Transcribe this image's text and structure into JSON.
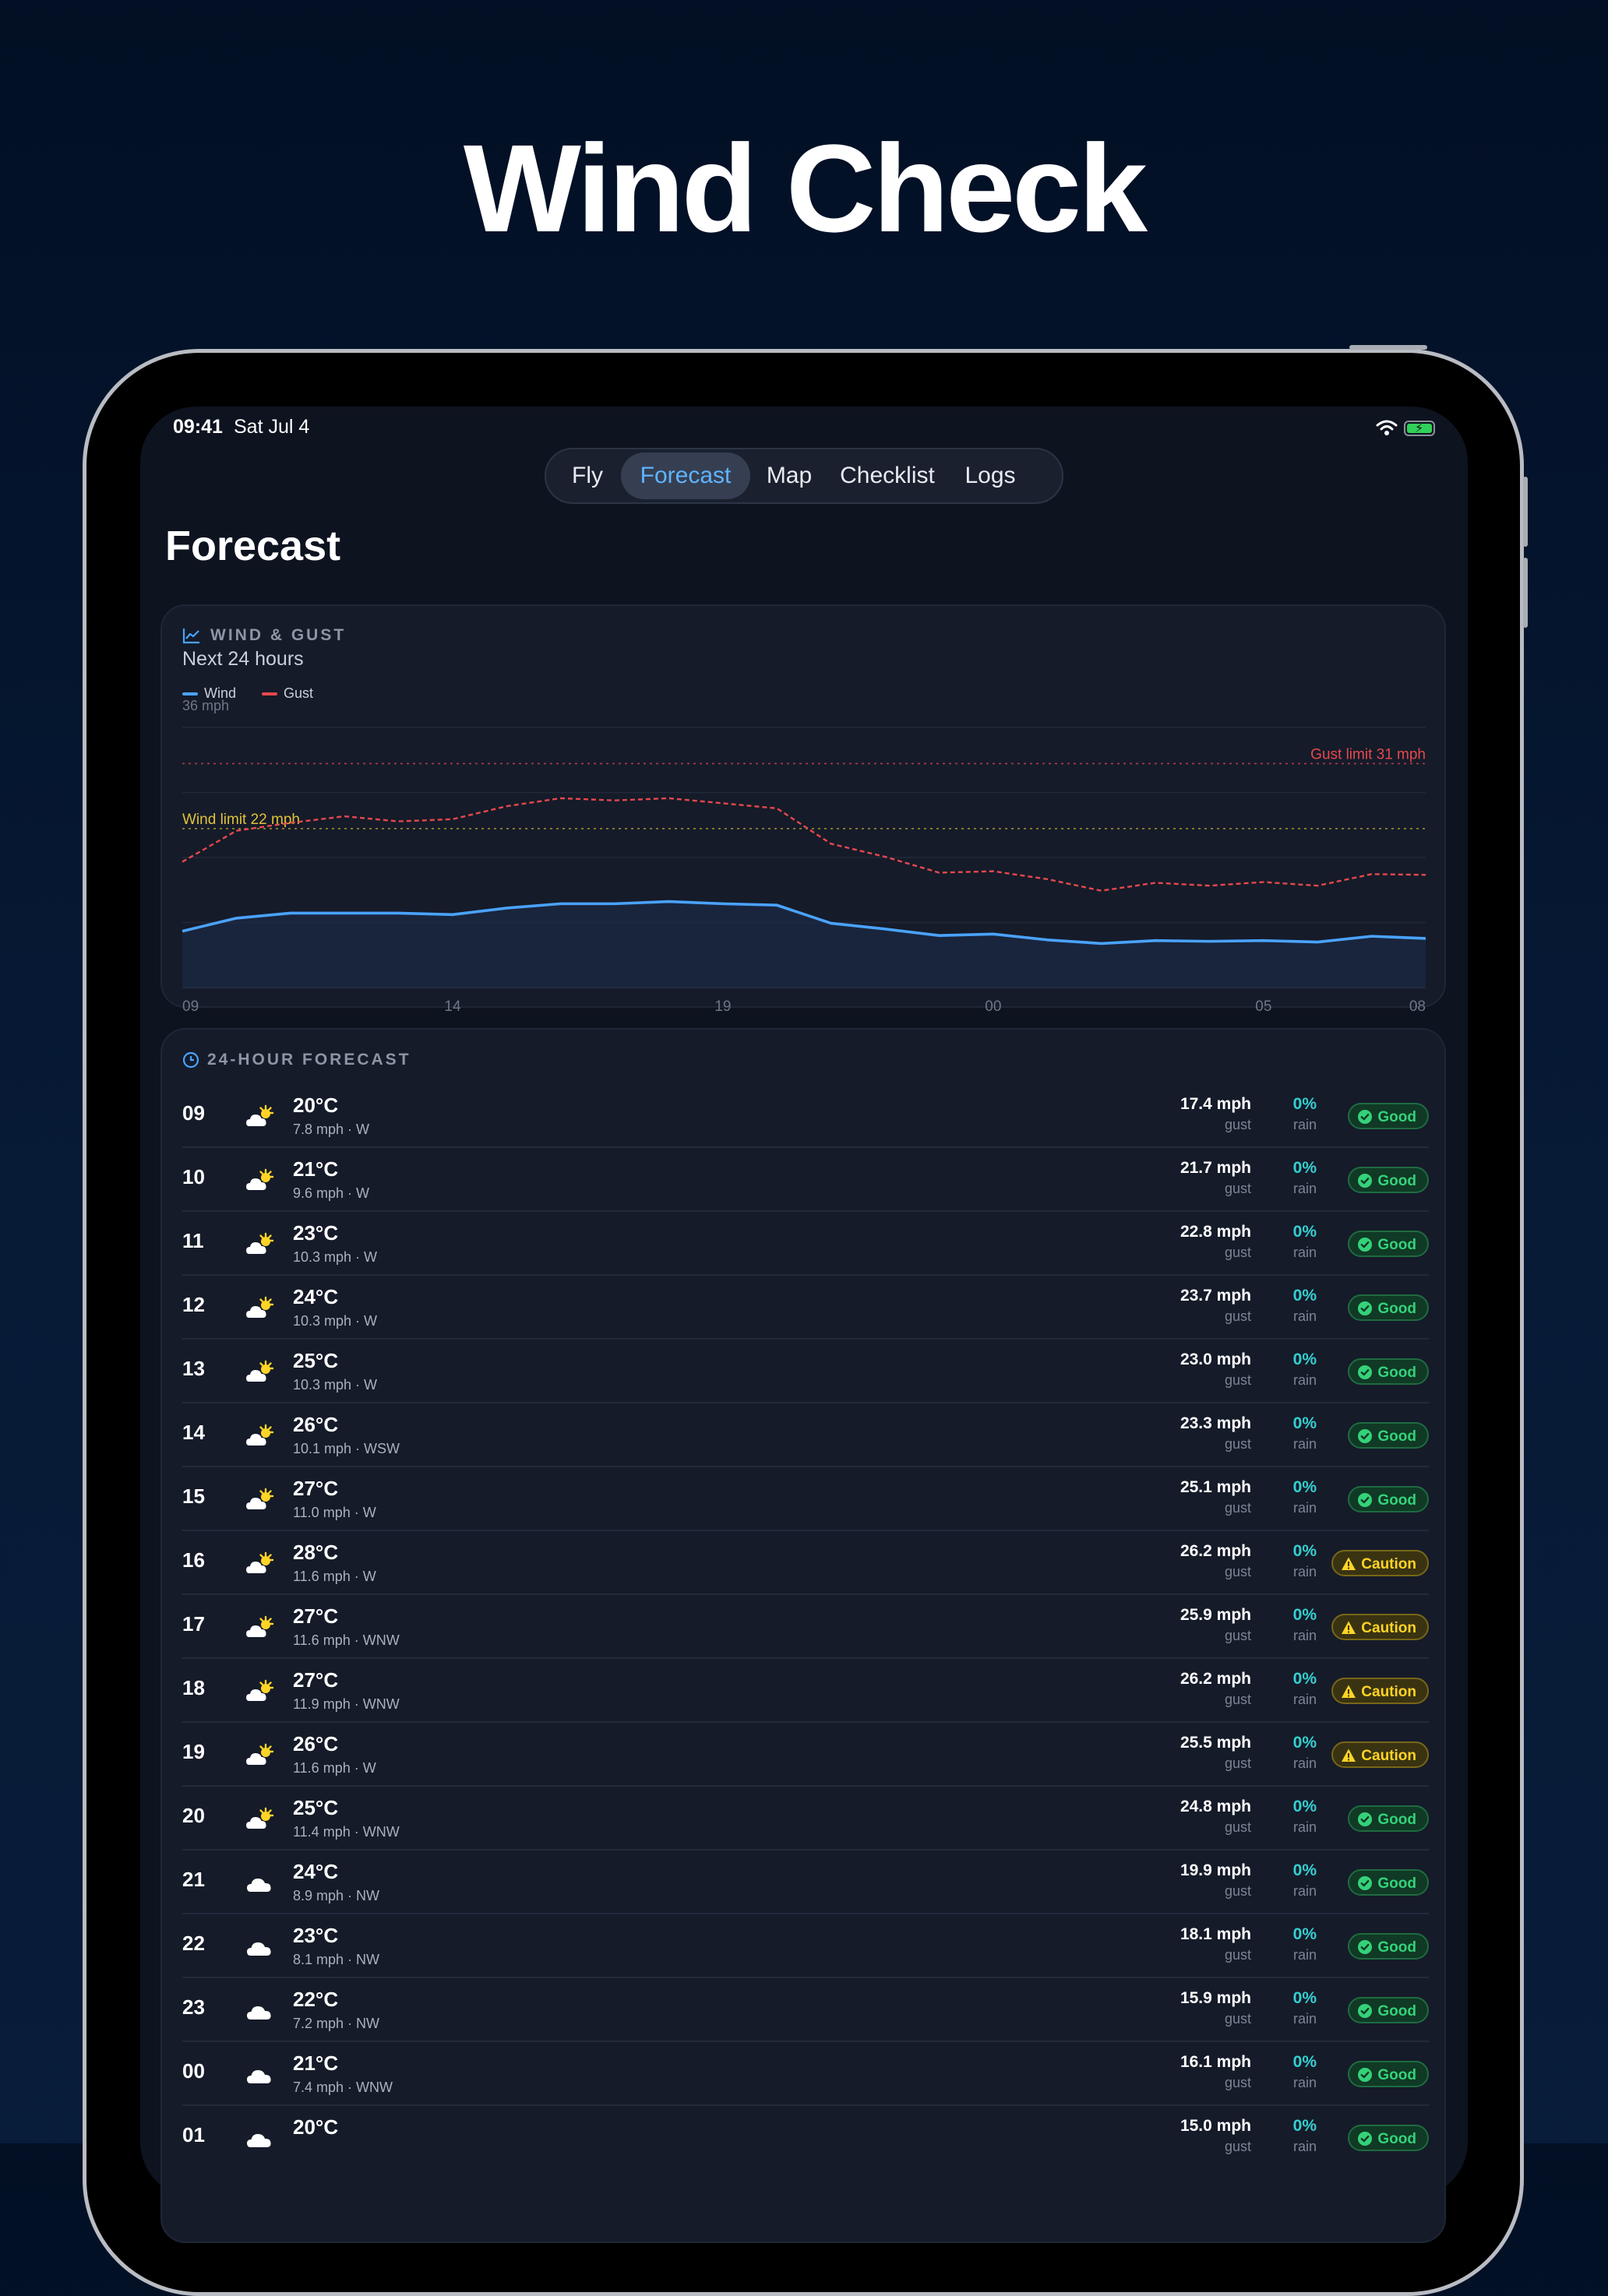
{
  "headline": "Wind Check",
  "status_bar": {
    "time": "09:41",
    "date": "Sat Jul 4"
  },
  "tabs": [
    "Fly",
    "Forecast",
    "Map",
    "Checklist",
    "Logs"
  ],
  "active_tab": "Forecast",
  "page_title": "Forecast",
  "chart_card": {
    "label": "WIND & GUST",
    "subtitle": "Next 24 hours",
    "legend": {
      "wind": "Wind",
      "gust": "Gust"
    },
    "y_top_label": "36 mph",
    "gust_limit_label": "Gust limit 31 mph",
    "wind_limit_label": "Wind limit 22 mph",
    "x_labels": [
      "09",
      "14",
      "19",
      "00",
      "05",
      "08"
    ]
  },
  "chart_data": {
    "type": "line",
    "title": "",
    "ylabel": "",
    "xlabel": "",
    "ylim": [
      0,
      36
    ],
    "unit": "mph",
    "x": [
      "09",
      "10",
      "11",
      "12",
      "13",
      "14",
      "15",
      "16",
      "17",
      "18",
      "19",
      "20",
      "21",
      "22",
      "23",
      "00",
      "01",
      "02",
      "03",
      "04",
      "05",
      "06",
      "07",
      "08"
    ],
    "series": [
      {
        "name": "Wind",
        "color": "#4aa3ff",
        "style": "solid",
        "values": [
          7.8,
          9.6,
          10.3,
          10.3,
          10.3,
          10.1,
          11.0,
          11.6,
          11.6,
          11.9,
          11.6,
          11.4,
          8.9,
          8.1,
          7.2,
          7.4,
          6.6,
          6.1,
          6.5,
          6.4,
          6.5,
          6.3,
          7.1,
          6.8
        ]
      },
      {
        "name": "Gust",
        "color": "#e5484d",
        "style": "dashed",
        "values": [
          17.4,
          21.7,
          22.8,
          23.7,
          23.0,
          23.3,
          25.1,
          26.2,
          25.9,
          26.2,
          25.5,
          24.8,
          19.9,
          18.1,
          15.9,
          16.1,
          15.0,
          13.4,
          14.5,
          14.1,
          14.6,
          14.1,
          15.7,
          15.6
        ]
      }
    ],
    "thresholds": [
      {
        "value": 31,
        "color": "#e5484d"
      },
      {
        "value": 22,
        "color": "#c9b236"
      }
    ],
    "grid": true,
    "legend_position": "top-left"
  },
  "forecast_card": {
    "label": "24-HOUR FORECAST"
  },
  "labels": {
    "gust": "gust",
    "rain": "rain"
  },
  "colors": {
    "accent": "#4aa3ff",
    "good": "#35d27a",
    "caution": "#ffd426",
    "rain": "#35d0d0"
  },
  "forecast_rows": [
    {
      "hour": "09",
      "icon": "partly-sunny-icon",
      "temp": "20°C",
      "wind": "7.8 mph · W",
      "gust": "17.4 mph",
      "rain": "0%",
      "status": "Good",
      "level": "good"
    },
    {
      "hour": "10",
      "icon": "partly-sunny-icon",
      "temp": "21°C",
      "wind": "9.6 mph · W",
      "gust": "21.7 mph",
      "rain": "0%",
      "status": "Good",
      "level": "good"
    },
    {
      "hour": "11",
      "icon": "partly-sunny-icon",
      "temp": "23°C",
      "wind": "10.3 mph · W",
      "gust": "22.8 mph",
      "rain": "0%",
      "status": "Good",
      "level": "good"
    },
    {
      "hour": "12",
      "icon": "partly-sunny-icon",
      "temp": "24°C",
      "wind": "10.3 mph · W",
      "gust": "23.7 mph",
      "rain": "0%",
      "status": "Good",
      "level": "good"
    },
    {
      "hour": "13",
      "icon": "partly-sunny-icon",
      "temp": "25°C",
      "wind": "10.3 mph · W",
      "gust": "23.0 mph",
      "rain": "0%",
      "status": "Good",
      "level": "good"
    },
    {
      "hour": "14",
      "icon": "partly-sunny-icon",
      "temp": "26°C",
      "wind": "10.1 mph · WSW",
      "gust": "23.3 mph",
      "rain": "0%",
      "status": "Good",
      "level": "good"
    },
    {
      "hour": "15",
      "icon": "partly-sunny-icon",
      "temp": "27°C",
      "wind": "11.0 mph · W",
      "gust": "25.1 mph",
      "rain": "0%",
      "status": "Good",
      "level": "good"
    },
    {
      "hour": "16",
      "icon": "partly-sunny-icon",
      "temp": "28°C",
      "wind": "11.6 mph · W",
      "gust": "26.2 mph",
      "rain": "0%",
      "status": "Caution",
      "level": "caution"
    },
    {
      "hour": "17",
      "icon": "partly-sunny-icon",
      "temp": "27°C",
      "wind": "11.6 mph · WNW",
      "gust": "25.9 mph",
      "rain": "0%",
      "status": "Caution",
      "level": "caution"
    },
    {
      "hour": "18",
      "icon": "partly-sunny-icon",
      "temp": "27°C",
      "wind": "11.9 mph · WNW",
      "gust": "26.2 mph",
      "rain": "0%",
      "status": "Caution",
      "level": "caution"
    },
    {
      "hour": "19",
      "icon": "partly-sunny-icon",
      "temp": "26°C",
      "wind": "11.6 mph · W",
      "gust": "25.5 mph",
      "rain": "0%",
      "status": "Caution",
      "level": "caution"
    },
    {
      "hour": "20",
      "icon": "partly-sunny-icon",
      "temp": "25°C",
      "wind": "11.4 mph · WNW",
      "gust": "24.8 mph",
      "rain": "0%",
      "status": "Good",
      "level": "good"
    },
    {
      "hour": "21",
      "icon": "cloud-icon",
      "temp": "24°C",
      "wind": "8.9 mph · NW",
      "gust": "19.9 mph",
      "rain": "0%",
      "status": "Good",
      "level": "good"
    },
    {
      "hour": "22",
      "icon": "cloud-icon",
      "temp": "23°C",
      "wind": "8.1 mph · NW",
      "gust": "18.1 mph",
      "rain": "0%",
      "status": "Good",
      "level": "good"
    },
    {
      "hour": "23",
      "icon": "cloud-icon",
      "temp": "22°C",
      "wind": "7.2 mph · NW",
      "gust": "15.9 mph",
      "rain": "0%",
      "status": "Good",
      "level": "good"
    },
    {
      "hour": "00",
      "icon": "cloud-icon",
      "temp": "21°C",
      "wind": "7.4 mph · WNW",
      "gust": "16.1 mph",
      "rain": "0%",
      "status": "Good",
      "level": "good"
    },
    {
      "hour": "01",
      "icon": "cloud-icon",
      "temp": "20°C",
      "wind": "",
      "gust": "15.0 mph",
      "rain": "0%",
      "status": "Good",
      "level": "good"
    }
  ]
}
